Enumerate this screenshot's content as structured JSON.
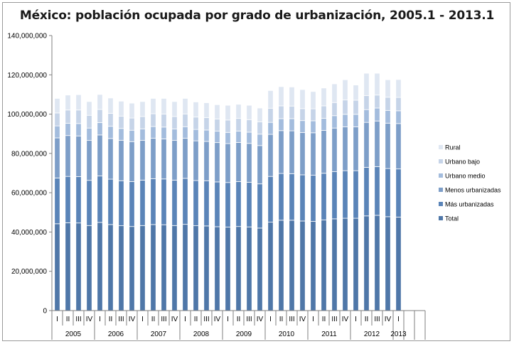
{
  "chart_data": {
    "type": "bar",
    "stacked": true,
    "title": "México: población ocupada por grado de urbanización, 2005.1 - 2013.1",
    "xlabel": "",
    "ylabel": "",
    "ylim": [
      0,
      140000000
    ],
    "yticks": [
      0,
      20000000,
      40000000,
      60000000,
      80000000,
      100000000,
      120000000,
      140000000
    ],
    "ytick_labels": [
      "0",
      "20,000,000",
      "40,000,000",
      "60,000,000",
      "80,000,000",
      "100,000,000",
      "120,000,000",
      "140,000,000"
    ],
    "grid": false,
    "legend_position": "right",
    "categories": [
      "I",
      "II",
      "III",
      "IV",
      "I",
      "II",
      "III",
      "IV",
      "I",
      "II",
      "III",
      "IV",
      "I",
      "II",
      "III",
      "IV",
      "I",
      "II",
      "III",
      "IV",
      "I",
      "II",
      "III",
      "IV",
      "I",
      "II",
      "III",
      "IV",
      "I",
      "II",
      "III",
      "IV",
      "I"
    ],
    "year_groups": [
      {
        "label": "2005",
        "count": 4
      },
      {
        "label": "2006",
        "count": 4
      },
      {
        "label": "2007",
        "count": 4
      },
      {
        "label": "2008",
        "count": 4
      },
      {
        "label": "2009",
        "count": 4
      },
      {
        "label": "2010",
        "count": 4
      },
      {
        "label": "2011",
        "count": 4
      },
      {
        "label": "2012",
        "count": 4
      },
      {
        "label": "2013",
        "count": 1
      }
    ],
    "empty_slots_after": 2,
    "series": [
      {
        "name": "Total",
        "color": "#4f77a8",
        "values": [
          44200000,
          44700000,
          44600000,
          43300000,
          44900000,
          43800000,
          43200000,
          42800000,
          43300000,
          43800000,
          43700000,
          43300000,
          43900000,
          43200000,
          43100000,
          42700000,
          42500000,
          42800000,
          42600000,
          42000000,
          45000000,
          46000000,
          46000000,
          45600000,
          45400000,
          46100000,
          46700000,
          47000000,
          47000000,
          48200000,
          48500000,
          47800000,
          47600000
        ]
      },
      {
        "name": "Más urbanizadas",
        "color": "#5a84b8",
        "values": [
          23300000,
          23600000,
          23600000,
          23000000,
          23600000,
          23100000,
          22900000,
          22900000,
          23100000,
          23300000,
          23300000,
          23100000,
          23400000,
          23000000,
          23000000,
          22800000,
          22700000,
          22900000,
          22700000,
          22500000,
          23300000,
          23800000,
          23700000,
          23500000,
          23500000,
          23800000,
          24000000,
          24200000,
          24200000,
          24700000,
          24800000,
          24500000,
          24500000
        ]
      },
      {
        "name": "Menos urbanizadas",
        "color": "#7d9ec8",
        "values": [
          20400000,
          20800000,
          20700000,
          20300000,
          20900000,
          20700000,
          20600000,
          20300000,
          20200000,
          20600000,
          20400000,
          20200000,
          20400000,
          20200000,
          20000000,
          20000000,
          19800000,
          19900000,
          19800000,
          19500000,
          21400000,
          21800000,
          21800000,
          21500000,
          21600000,
          21800000,
          22200000,
          22300000,
          22300000,
          22900000,
          23200000,
          23100000,
          23100000
        ]
      },
      {
        "name": "Urbano medio",
        "color": "#a3bcdd",
        "values": [
          6100000,
          6200000,
          6300000,
          6300000,
          6300000,
          6200000,
          6000000,
          5800000,
          5900000,
          6000000,
          6000000,
          5800000,
          5900000,
          5800000,
          5800000,
          5800000,
          5700000,
          5800000,
          5700000,
          5800000,
          6100000,
          6100000,
          6200000,
          6100000,
          6100000,
          6200000,
          6300000,
          6400000,
          6400000,
          6500000,
          6600000,
          6500000,
          6500000
        ]
      },
      {
        "name": "Urbano bajo",
        "color": "#c6d4e8",
        "values": [
          6600000,
          6800000,
          6900000,
          6500000,
          6700000,
          6600000,
          6300000,
          6200000,
          6300000,
          6500000,
          6600000,
          6400000,
          6500000,
          6300000,
          6300000,
          6200000,
          6300000,
          6400000,
          6400000,
          6300000,
          7200000,
          6500000,
          6400000,
          6100000,
          6100000,
          6300000,
          6700000,
          7300000,
          7200000,
          7100000,
          6600000,
          6700000,
          6800000
        ]
      },
      {
        "name": "Rural",
        "color": "#dfe7f2",
        "values": [
          7400000,
          7600000,
          7800000,
          7000000,
          7600000,
          7800000,
          7600000,
          7600000,
          7600000,
          7800000,
          8000000,
          7600000,
          7900000,
          7700000,
          7600000,
          7300000,
          7500000,
          7200000,
          7300000,
          7000000,
          9000000,
          9800000,
          9700000,
          9700000,
          8800000,
          9100000,
          9500000,
          10300000,
          7700000,
          11400000,
          11100000,
          8900000,
          9100000
        ]
      }
    ]
  }
}
